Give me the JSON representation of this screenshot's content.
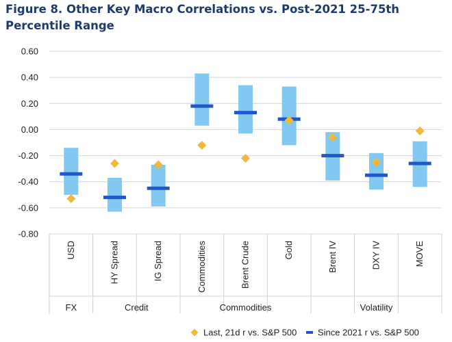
{
  "chart_data": {
    "type": "range-bar",
    "title": "Figure 8. Other Key Macro Correlations vs. Post-2021 25-75th Percentile Range",
    "ylim": [
      -0.8,
      0.6
    ],
    "yticks": [
      "0.60",
      "0.40",
      "0.20",
      "0.00",
      "-0.20",
      "-0.40",
      "-0.60",
      "-0.80"
    ],
    "ytick_values": [
      0.6,
      0.4,
      0.2,
      0.0,
      -0.2,
      -0.4,
      -0.6,
      -0.8
    ],
    "categories": [
      "USD",
      "HY Spread",
      "IG Spread",
      "Commodities",
      "Brent Crude",
      "Gold",
      "Brent IV",
      "DXY IV",
      "MOVE"
    ],
    "groups": [
      {
        "name": "FX",
        "count": 1
      },
      {
        "name": "Credit",
        "count": 2
      },
      {
        "name": "Commodities",
        "count": 3
      },
      {
        "name": "Volatility",
        "count": 3
      }
    ],
    "series": [
      {
        "name": "25-75th percentile range",
        "low": [
          -0.5,
          -0.63,
          -0.59,
          0.03,
          -0.03,
          -0.12,
          -0.39,
          -0.46,
          -0.44
        ],
        "high": [
          -0.14,
          -0.37,
          -0.27,
          0.43,
          0.34,
          0.33,
          -0.02,
          -0.18,
          -0.09
        ]
      },
      {
        "name": "Last, 21d r vs. S&P 500",
        "values": [
          -0.53,
          -0.26,
          -0.27,
          -0.12,
          -0.22,
          0.07,
          -0.06,
          -0.25,
          -0.01
        ]
      },
      {
        "name": "Since 2021 r vs. S&P 500",
        "values": [
          -0.34,
          -0.52,
          -0.45,
          0.18,
          0.13,
          0.08,
          -0.2,
          -0.35,
          -0.26
        ]
      }
    ],
    "legend": [
      {
        "label": "Last, 21d r vs. S&P 500",
        "marker": "diamond"
      },
      {
        "label": "Since 2021 r vs. S&P 500",
        "marker": "dash"
      }
    ],
    "colors": {
      "range": "#82c8f0",
      "median": "#2356c8",
      "last": "#f0b93c",
      "title": "#1f3a68"
    }
  }
}
